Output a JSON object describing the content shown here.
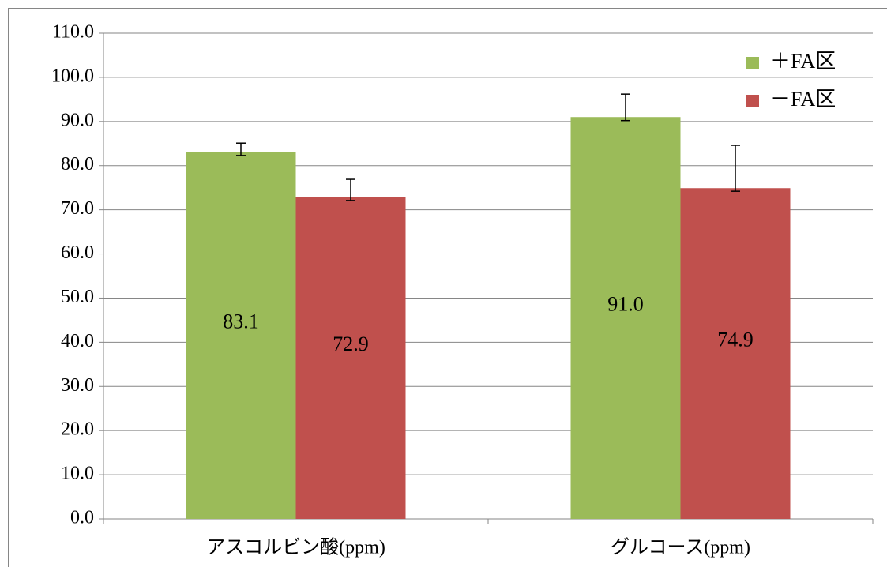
{
  "chart_data": {
    "type": "bar",
    "categories": [
      "アスコルビン酸(ppm)",
      "グルコース(ppm)"
    ],
    "series": [
      {
        "name": "＋FA区",
        "color": "#9bbb59",
        "values": [
          83.1,
          91.0
        ],
        "value_labels": [
          "83.1",
          "91.0"
        ],
        "error_plus": [
          2.0,
          5.2
        ],
        "error_minus": [
          0.8,
          0.8
        ]
      },
      {
        "name": "－FA区",
        "color": "#c0504d",
        "values": [
          72.9,
          74.9
        ],
        "value_labels": [
          "72.9",
          "74.9"
        ],
        "error_plus": [
          4.0,
          9.7
        ],
        "error_minus": [
          0.8,
          0.7
        ]
      }
    ],
    "ylim": [
      0,
      110
    ],
    "yticks": [
      {
        "value": 0,
        "label": "0.0"
      },
      {
        "value": 10,
        "label": "10.0"
      },
      {
        "value": 20,
        "label": "20.0"
      },
      {
        "value": 30,
        "label": "30.0"
      },
      {
        "value": 40,
        "label": "40.0"
      },
      {
        "value": 50,
        "label": "50.0"
      },
      {
        "value": 60,
        "label": "60.0"
      },
      {
        "value": 70,
        "label": "70.0"
      },
      {
        "value": 80,
        "label": "80.0"
      },
      {
        "value": 90,
        "label": "90.0"
      },
      {
        "value": 100,
        "label": "100.0"
      },
      {
        "value": 110,
        "label": "110.0"
      }
    ],
    "grid": true,
    "legend": "top-right"
  }
}
